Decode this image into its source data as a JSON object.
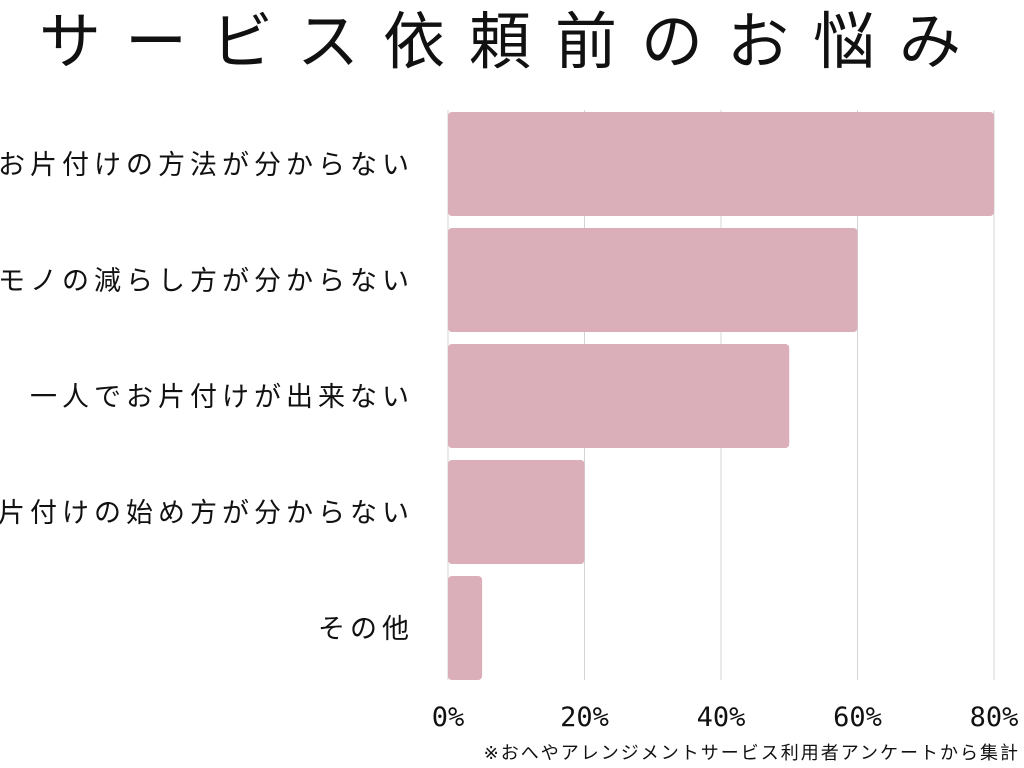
{
  "title": "サービス依頼前のお悩み",
  "footnote": "※おへやアレンジメントサービス利用者アンケートから集計",
  "colors": {
    "bar": "#dbafba",
    "grid": "#d4d4d4",
    "text": "#111111"
  },
  "chart_data": {
    "type": "bar",
    "orientation": "horizontal",
    "categories": [
      "お片付けの方法が分からない",
      "モノの減らし方が分からない",
      "一人でお片付けが出来ない",
      "片付けの始め方が分からない",
      "その他"
    ],
    "values": [
      80,
      60,
      50,
      20,
      5
    ],
    "unit": "%",
    "xlim": [
      0,
      80
    ],
    "xticks": [
      0,
      20,
      40,
      60,
      80
    ],
    "xtick_labels": [
      "0%",
      "20%",
      "40%",
      "60%",
      "80%"
    ],
    "grid": true,
    "legend": "none"
  }
}
